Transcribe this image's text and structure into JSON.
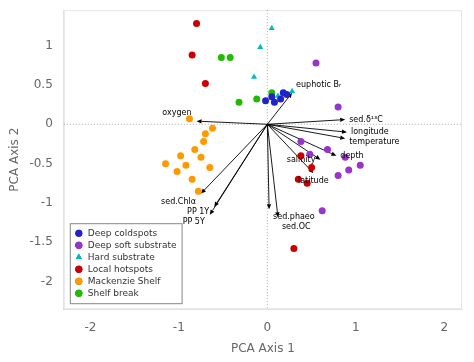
{
  "chart_data": {
    "type": "scatter",
    "xlabel": "PCA Axis 1",
    "ylabel": "PCA Axis 2",
    "xlim": [
      -2.3,
      2.2
    ],
    "ylim": [
      -2.35,
      1.45
    ],
    "xticks": [
      -2,
      -1,
      0,
      1,
      2
    ],
    "yticks": [
      -2,
      -1.5,
      -1,
      -0.5,
      0,
      0.5,
      1
    ],
    "grid": false,
    "legend": "lower left",
    "series": [
      {
        "name": "Deep coldspots",
        "color": "#2222cc",
        "marker": "circle",
        "values": [
          [
            0.05,
            0.35
          ],
          [
            0.15,
            0.32
          ],
          [
            0.22,
            0.38
          ],
          [
            0.08,
            0.28
          ],
          [
            0.18,
            0.4
          ],
          [
            -0.02,
            0.3
          ]
        ]
      },
      {
        "name": "Deep soft substrate",
        "color": "#9933cc",
        "marker": "circle",
        "values": [
          [
            0.55,
            0.78
          ],
          [
            0.8,
            0.22
          ],
          [
            0.88,
            -0.42
          ],
          [
            0.92,
            -0.58
          ],
          [
            0.8,
            -0.65
          ],
          [
            1.05,
            -0.52
          ],
          [
            0.62,
            -1.1
          ],
          [
            0.48,
            -0.38
          ],
          [
            0.38,
            -0.22
          ],
          [
            0.68,
            -0.32
          ]
        ]
      },
      {
        "name": "Hard substrate",
        "color": "#00bbbb",
        "marker": "triangle",
        "values": [
          [
            0.05,
            1.22
          ],
          [
            -0.08,
            0.98
          ],
          [
            -0.15,
            0.6
          ],
          [
            0.28,
            0.42
          ],
          [
            0.2,
            0.4
          ],
          [
            0.12,
            0.36
          ]
        ]
      },
      {
        "name": "Local hotspots",
        "color": "#cc0000",
        "marker": "circle",
        "values": [
          [
            -0.8,
            1.28
          ],
          [
            -0.85,
            0.88
          ],
          [
            -0.7,
            0.52
          ],
          [
            0.38,
            -0.4
          ],
          [
            0.5,
            -0.55
          ],
          [
            0.35,
            -0.7
          ],
          [
            0.45,
            -0.75
          ],
          [
            0.3,
            -1.58
          ]
        ]
      },
      {
        "name": "Mackenzie Shelf",
        "color": "#ff9900",
        "marker": "circle",
        "values": [
          [
            -0.88,
            0.07
          ],
          [
            -0.72,
            -0.22
          ],
          [
            -0.82,
            -0.32
          ],
          [
            -0.92,
            -0.52
          ],
          [
            -1.02,
            -0.6
          ],
          [
            -1.15,
            -0.5
          ],
          [
            -0.85,
            -0.7
          ],
          [
            -0.98,
            -0.4
          ],
          [
            -0.7,
            -0.12
          ],
          [
            -0.62,
            -0.05
          ],
          [
            -0.75,
            -0.42
          ],
          [
            -0.65,
            -0.55
          ],
          [
            -0.78,
            -0.85
          ]
        ]
      },
      {
        "name": "Shelf break",
        "color": "#22bb00",
        "marker": "circle",
        "values": [
          [
            -0.32,
            0.28
          ],
          [
            -0.12,
            0.32
          ],
          [
            0.05,
            0.4
          ],
          [
            -0.52,
            0.85
          ],
          [
            -0.42,
            0.85
          ]
        ]
      }
    ],
    "annotations": [
      {
        "text": "sed.δ¹³C",
        "x": 0.88,
        "y": 0.06
      },
      {
        "text": "longitude",
        "x": 0.9,
        "y": -0.1
      },
      {
        "text": "temperature",
        "x": 0.88,
        "y": -0.18
      },
      {
        "text": "depth",
        "x": 0.78,
        "y": -0.4
      },
      {
        "text": "salinity",
        "x": 0.6,
        "y": -0.45
      },
      {
        "text": "latitude",
        "x": 0.52,
        "y": -0.62
      },
      {
        "text": "euphotic Bᵣ",
        "x": 0.28,
        "y": 0.4
      },
      {
        "text": "oxygen",
        "x": -0.8,
        "y": 0.04
      },
      {
        "text": "sed.Chlα",
        "x": -0.75,
        "y": -0.88
      },
      {
        "text": "PP 1Y",
        "x": -0.6,
        "y": -1.05
      },
      {
        "text": "PP 5Y",
        "x": -0.65,
        "y": -1.15
      },
      {
        "text": "sed.phaeo",
        "x": 0.02,
        "y": -1.08
      },
      {
        "text": "sed.OC",
        "x": 0.12,
        "y": -1.18
      }
    ]
  }
}
